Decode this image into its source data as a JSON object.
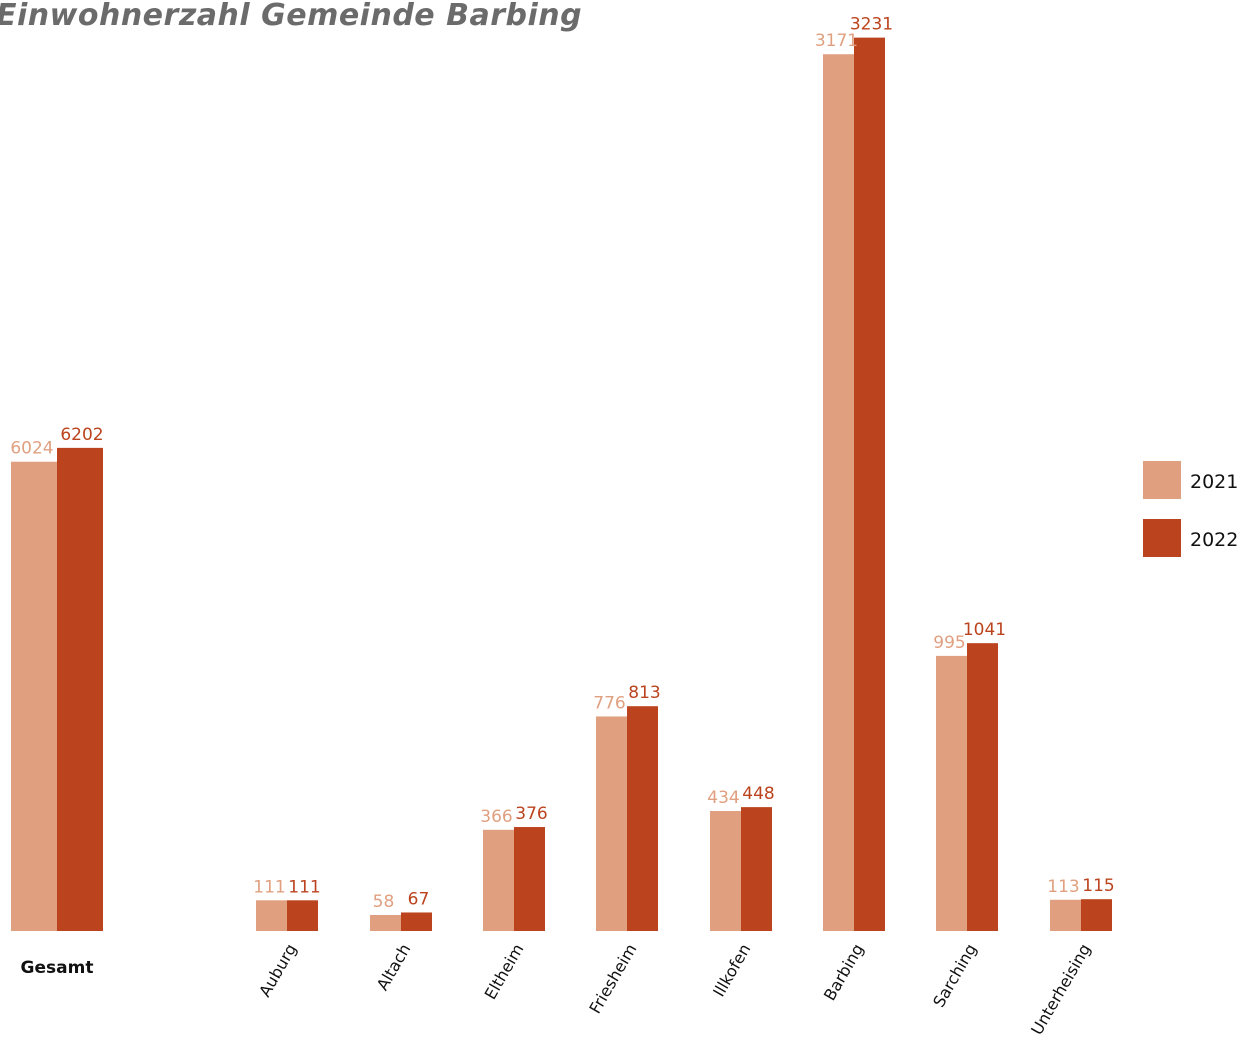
{
  "chart_data": {
    "type": "bar",
    "title": "Einwohnerzahl Gemeinde Barbing",
    "categories": [
      "Gesamt",
      "Auburg",
      "Altach",
      "Eltheim",
      "Friesheim",
      "Illkofen",
      "Barbing",
      "Sarching",
      "Unterheising"
    ],
    "series": [
      {
        "name": "2021",
        "values": [
          6024,
          111,
          58,
          366,
          776,
          434,
          3171,
          995,
          113
        ],
        "color": "#e0a080"
      },
      {
        "name": "2022",
        "values": [
          6202,
          111,
          67,
          376,
          813,
          448,
          3231,
          1041,
          115
        ],
        "color": "#bb431d"
      }
    ],
    "grid": false,
    "legend_position": "right"
  }
}
